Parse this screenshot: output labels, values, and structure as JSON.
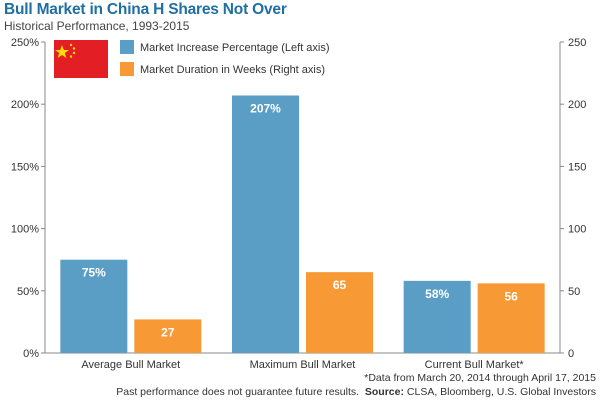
{
  "header": {
    "title": "Bull Market in China H Shares Not Over",
    "subtitle": "Historical Performance, 1993-2015"
  },
  "legend": {
    "flag_icon": "china-flag-icon",
    "placement": "top-left"
  },
  "chart_data": {
    "type": "bar",
    "title": "Bull Market in China H Shares Not Over",
    "subtitle": "Historical Performance, 1993-2015",
    "categories": [
      "Average Bull Market",
      "Maximum Bull Market",
      "Current Bull Market*"
    ],
    "series": [
      {
        "name": "Market Increase Percentage (Left axis)",
        "axis": "left",
        "color": "#5a9ec6",
        "values": [
          75,
          207,
          58
        ],
        "labels": [
          "75%",
          "207%",
          "58%"
        ]
      },
      {
        "name": "Market Duration in Weeks (Right axis)",
        "axis": "right",
        "color": "#f79a35",
        "values": [
          27,
          65,
          56
        ],
        "labels": [
          "27",
          "65",
          "56"
        ]
      }
    ],
    "left_axis": {
      "ylim": [
        0,
        250
      ],
      "ticks": [
        "0%",
        "50%",
        "100%",
        "150%",
        "200%",
        "250%"
      ]
    },
    "right_axis": {
      "ylim": [
        0,
        250
      ],
      "ticks": [
        "0",
        "50",
        "100",
        "150",
        "200",
        "250"
      ]
    },
    "grid": false,
    "legend_placement": "top-left"
  },
  "footer": {
    "note": "*Data from March 20, 2014 through April 17, 2015",
    "disclaimer": "Past performance does not guarantee future results.",
    "source_label": "Source:",
    "source_text": "CLSA, Bloomberg, U.S. Global Investors"
  }
}
